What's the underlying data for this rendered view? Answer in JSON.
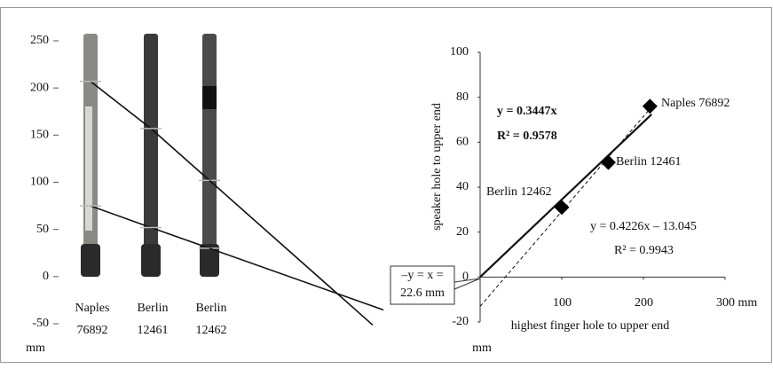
{
  "chart_data": [
    {
      "type": "photo",
      "ylim": [
        -50,
        250
      ],
      "yticks": [
        -50,
        0,
        50,
        100,
        150,
        200,
        250
      ],
      "y_unit": "mm",
      "categories": [
        [
          "Naples",
          "76892"
        ],
        [
          "Berlin",
          "12461"
        ],
        [
          "Berlin",
          "12462"
        ]
      ],
      "series": [
        {
          "color": "#111",
          "values": [
            207,
            157,
            102
          ]
        },
        {
          "color": "#111",
          "values": [
            75,
            52,
            30
          ]
        }
      ]
    },
    {
      "type": "scatter",
      "x_label": "highest finger hole to upper end",
      "y_label": "speaker hole to upper end",
      "y_unit": "mm",
      "xlim": [
        0,
        300
      ],
      "ylim": [
        -20,
        100
      ],
      "xticks": [
        100,
        200,
        {
          "value": 300,
          "label": "300 mm"
        }
      ],
      "yticks": [
        -20,
        0,
        20,
        40,
        60,
        80,
        100
      ],
      "points": [
        {
          "label": "Naples 76892",
          "x": 208,
          "y": 76
        },
        {
          "label": "Berlin 12461",
          "x": 157,
          "y": 51
        },
        {
          "label": "Berlin 12462",
          "x": 100,
          "y": 31
        }
      ],
      "fits": [
        {
          "equation": "y = 0.3447x",
          "r2": "R² = 0.9578",
          "slope": 0.3447,
          "intercept": 0,
          "style": "solid"
        },
        {
          "equation": "y = 0.4226x – 13.045",
          "r2": "R² = 0.9943",
          "slope": 0.4226,
          "intercept": -13.045,
          "style": "dashed"
        }
      ],
      "callout": [
        "–y = x =",
        "22.6 mm"
      ]
    }
  ]
}
